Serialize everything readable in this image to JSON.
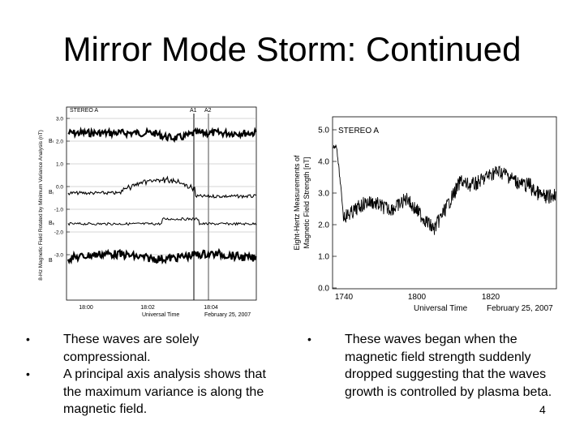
{
  "slide": {
    "title": "Mirror Mode Storm: Continued",
    "page_number": "4"
  },
  "left_figure": {
    "panel_label": "STEREO A",
    "markers": [
      "A1",
      "A2"
    ],
    "y_axis_label": "8-Hz Magnetic Field Rotated by Minimum Variance Analysis (nT)",
    "y_ticks": [
      "3.0",
      "2.0",
      "1.0",
      "0.0",
      "-1.0",
      "-2.0",
      "-3.0"
    ],
    "trace_labels": [
      "Bₗ",
      "Bᵢ",
      "Bₖ",
      "B"
    ],
    "x_ticks": [
      "18:00",
      "18:02",
      "18:04"
    ],
    "x_axis_label": "Universal Time",
    "date": "February 25, 2007"
  },
  "right_figure": {
    "panel_label": "STEREO A",
    "y_axis_label_line1": "Eight-Hertz Measurements of",
    "y_axis_label_line2": "Magnetic Field Strength [nT]",
    "y_ticks": [
      "5.0",
      "4.0",
      "3.0",
      "2.0",
      "1.0",
      "0.0"
    ],
    "x_ticks": [
      "1740",
      "1800",
      "1820"
    ],
    "x_axis_label": "Universal Time",
    "date": "February 25, 2007"
  },
  "left_bullets": [
    "These waves are solely compressional.",
    "A principal axis analysis shows that the maximum variance is along the magnetic field."
  ],
  "right_bullets": [
    "These waves began when the magnetic field strength suddenly dropped suggesting that the waves growth is controlled by plasma beta."
  ],
  "bullet_symbol": "•"
}
